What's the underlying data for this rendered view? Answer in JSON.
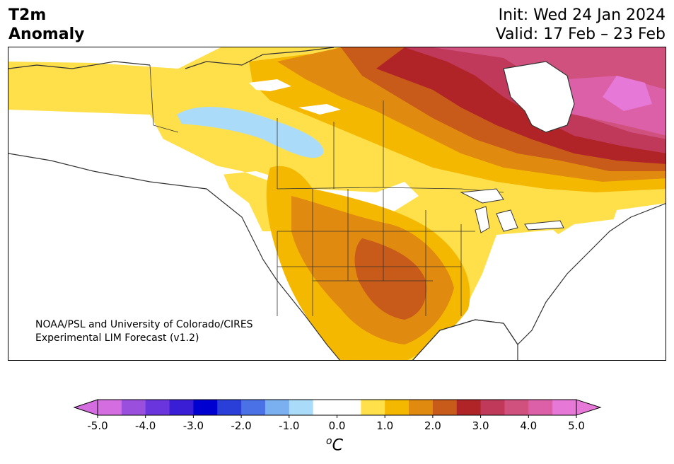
{
  "header": {
    "title_line1": "T2m",
    "title_line2": "Anomaly",
    "init": "Init: Wed 24 Jan 2024",
    "valid": "Valid: 17 Feb – 23 Feb"
  },
  "credit": {
    "line1": "NOAA/PSL and University of Colorado/CIRES",
    "line2": "Experimental LIM Forecast (v1.2)"
  },
  "colorbar": {
    "colors": [
      "#d46ee0",
      "#9a50dc",
      "#6a35dc",
      "#3a1ed6",
      "#0000d0",
      "#2a3ed8",
      "#4a72e6",
      "#7ab0f0",
      "#aadcfa",
      "#ffffff",
      "#ffffff",
      "#ffe04a",
      "#f5b800",
      "#e08a10",
      "#c85a1a",
      "#b02428",
      "#c0385a",
      "#d0507e",
      "#dc60a8",
      "#e678d8"
    ],
    "ticks": [
      "-5.0",
      "-4.0",
      "-3.0",
      "-2.0",
      "-1.0",
      "0.0",
      "1.0",
      "2.0",
      "3.0",
      "4.0",
      "5.0"
    ],
    "unit_base": "C",
    "unit_sup": "o"
  }
}
